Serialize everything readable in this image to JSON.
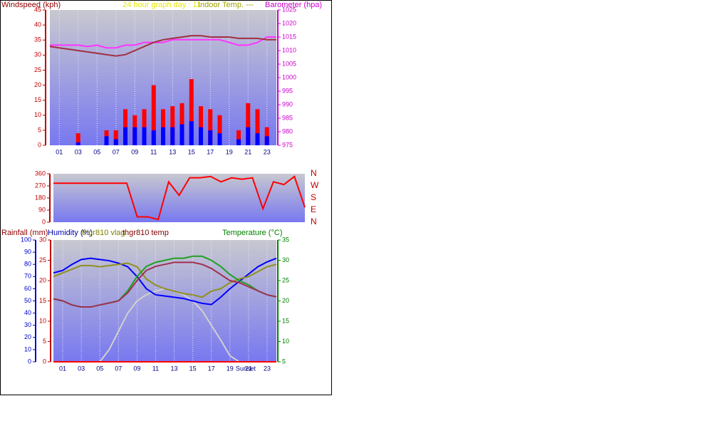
{
  "chart_data": [
    {
      "type": "combo",
      "title": "24 hour graph day : 11",
      "subtitle": "Indoor Temp. ---",
      "ylabel": "Windspeed (kph)",
      "y2label": "Barometer (hpa)",
      "ycolor": "#c00000",
      "y2color": "#cc00cc",
      "x": [
        0,
        1,
        2,
        3,
        4,
        5,
        6,
        7,
        8,
        9,
        10,
        11,
        12,
        13,
        14,
        15,
        16,
        17,
        18,
        19,
        20,
        21,
        22,
        23,
        24
      ],
      "xlim": [
        0,
        24
      ],
      "xticks": [
        {
          "value": 1,
          "label": "01"
        },
        {
          "value": 3,
          "label": "03"
        },
        {
          "value": 5,
          "label": "05"
        },
        {
          "value": 7,
          "label": "07"
        },
        {
          "value": 9,
          "label": "09"
        },
        {
          "value": 11,
          "label": "11"
        },
        {
          "value": 13,
          "label": "13"
        },
        {
          "value": 15,
          "label": "15"
        },
        {
          "value": 17,
          "label": "17"
        },
        {
          "value": 19,
          "label": "19"
        },
        {
          "value": 21,
          "label": "21"
        },
        {
          "value": 23,
          "label": "23"
        }
      ],
      "ylim": [
        0,
        45
      ],
      "yticks": [
        0,
        5,
        10,
        15,
        20,
        25,
        30,
        35,
        40,
        45
      ],
      "y2lim": [
        975,
        1025
      ],
      "y2ticks": [
        975,
        980,
        985,
        990,
        995,
        1000,
        1005,
        1010,
        1015,
        1020,
        1025
      ],
      "series": [
        {
          "type": "bar",
          "color": "#ff0000",
          "values": [
            0,
            0,
            0,
            4,
            0,
            0,
            5,
            5,
            12,
            10,
            12,
            20,
            12,
            13,
            14,
            22,
            13,
            12,
            10,
            0,
            5,
            14,
            12,
            6,
            0
          ]
        },
        {
          "type": "bar",
          "color": "#0000ff",
          "values": [
            0,
            0,
            0,
            1,
            0,
            0,
            3,
            2,
            6,
            6,
            6,
            5,
            6,
            6,
            7,
            8,
            6,
            5,
            4,
            0,
            2,
            6,
            4,
            3,
            0
          ]
        },
        {
          "type": "line",
          "axis": "y2",
          "color": "#ff33ff",
          "values": [
            1012,
            1012,
            1012,
            1012,
            1011.5,
            1012,
            1011,
            1011,
            1012,
            1012,
            1013,
            1013,
            1013,
            1014,
            1014,
            1014,
            1014,
            1014,
            1014,
            1013,
            1012,
            1012,
            1013,
            1015,
            1015
          ]
        },
        {
          "type": "line",
          "axis": "y2",
          "color": "#a03040",
          "values": [
            1011.5,
            1011,
            1010.5,
            1010,
            1009.5,
            1009,
            1008.5,
            1008,
            1008.5,
            1010,
            1011.5,
            1013,
            1014,
            1014.5,
            1015,
            1015.5,
            1015.5,
            1015,
            1015,
            1015,
            1014.5,
            1014.5,
            1014.5,
            1014,
            1014
          ]
        }
      ]
    },
    {
      "type": "combo",
      "ycolor": "#c00000",
      "y2color": "#c00000",
      "x": [
        0,
        1,
        2,
        3,
        4,
        5,
        6,
        7,
        8,
        9,
        10,
        11,
        12,
        13,
        14,
        15,
        16,
        17,
        18,
        19,
        20,
        21,
        22,
        23,
        24
      ],
      "xlim": [
        0,
        24
      ],
      "ylim": [
        0,
        360
      ],
      "yticks": [
        0,
        90,
        180,
        270,
        360
      ],
      "y2lim": [
        0,
        360
      ],
      "y2ticks": [
        {
          "value": 360,
          "label": "N"
        },
        {
          "value": 270,
          "label": "W"
        },
        {
          "value": 180,
          "label": "S"
        },
        {
          "value": 90,
          "label": "E"
        },
        {
          "value": 0,
          "label": "N"
        }
      ],
      "series": [
        {
          "type": "line",
          "color": "#ff0000",
          "values": [
            290,
            290,
            290,
            290,
            290,
            290,
            290,
            290,
            40,
            40,
            20,
            300,
            200,
            330,
            330,
            340,
            300,
            330,
            320,
            330,
            100,
            300,
            280,
            340,
            110
          ]
        }
      ]
    },
    {
      "type": "combo",
      "ylabel": "Humidity (%)",
      "y2label": "Temperature (°C)",
      "y3label": "Rainfall (mm)",
      "ycolor": "#0000cc",
      "y2color": "#008000",
      "y3color": "#c00000",
      "x": [
        0,
        1,
        2,
        3,
        4,
        5,
        6,
        7,
        8,
        9,
        10,
        11,
        12,
        13,
        14,
        15,
        16,
        17,
        18,
        19,
        20,
        21,
        22,
        23,
        24
      ],
      "xlim": [
        0,
        24
      ],
      "xticks": [
        {
          "value": 1,
          "label": "01"
        },
        {
          "value": 3,
          "label": "03"
        },
        {
          "value": 5,
          "label": "05"
        },
        {
          "value": 7,
          "label": "07"
        },
        {
          "value": 9,
          "label": "09"
        },
        {
          "value": 11,
          "label": "11"
        },
        {
          "value": 13,
          "label": "13"
        },
        {
          "value": 15,
          "label": "15"
        },
        {
          "value": 17,
          "label": "17"
        },
        {
          "value": 19,
          "label": "19"
        },
        {
          "value": 21,
          "label": "21"
        },
        {
          "value": 23,
          "label": "23"
        }
      ],
      "ylim": [
        0,
        100
      ],
      "yticks": [
        0,
        10,
        20,
        30,
        40,
        50,
        60,
        70,
        80,
        90,
        100
      ],
      "y2lim": [
        5,
        35
      ],
      "y2ticks": [
        5,
        10,
        15,
        20,
        25,
        30,
        35
      ],
      "y3lim": [
        0,
        30
      ],
      "y3ticks": [
        0,
        5,
        10,
        15,
        20,
        25,
        30
      ],
      "annotations": [
        {
          "text": "Sunset",
          "x": 20.7
        }
      ],
      "series": [
        {
          "type": "line",
          "color": "#d0d0d0",
          "values": [
            0,
            0,
            0,
            0,
            0,
            0,
            10,
            25,
            40,
            50,
            55,
            58,
            60,
            58,
            55,
            50,
            42,
            30,
            18,
            5,
            0,
            0,
            0,
            0,
            0
          ]
        },
        {
          "type": "line",
          "axis": "y3",
          "color": "#ff0000",
          "values": [
            0,
            0,
            0,
            0,
            0,
            0,
            0,
            0,
            0,
            0,
            0,
            0,
            0,
            0,
            0,
            0,
            0,
            0,
            0,
            0,
            0,
            0,
            0,
            0,
            0
          ]
        },
        {
          "type": "line",
          "color": "#0000ff",
          "values": [
            73,
            75,
            80,
            84,
            85,
            84,
            83,
            81,
            78,
            70,
            60,
            55,
            54,
            53,
            52,
            50,
            48,
            47,
            53,
            60,
            66,
            72,
            78,
            82,
            85
          ]
        },
        {
          "type": "line",
          "name": "thgr810 vlag",
          "color": "#909020",
          "values": [
            70,
            73,
            76,
            79,
            79,
            78,
            79,
            80,
            81,
            78,
            68,
            63,
            60,
            58,
            56,
            55,
            53,
            58,
            60,
            65,
            68,
            70,
            74,
            78,
            80
          ]
        },
        {
          "type": "line",
          "axis": "y2",
          "color": "#20a020",
          "values": [
            20.5,
            20,
            19,
            18.5,
            18.5,
            19,
            19.5,
            20,
            22.5,
            26,
            28.5,
            29.5,
            30,
            30.5,
            30.5,
            31,
            31,
            30,
            28.5,
            26.5,
            25,
            24,
            22.5,
            21.5,
            21
          ]
        },
        {
          "type": "line",
          "axis": "y2",
          "name": "thgr810 temp",
          "color": "#a03050",
          "values": [
            20.5,
            20,
            19,
            18.5,
            18.5,
            19,
            19.5,
            20,
            22,
            25,
            27.5,
            28.5,
            29,
            29.5,
            29.5,
            29.5,
            29,
            28,
            26.5,
            25,
            24.5,
            23.5,
            22.5,
            21.5,
            21
          ]
        }
      ]
    }
  ]
}
